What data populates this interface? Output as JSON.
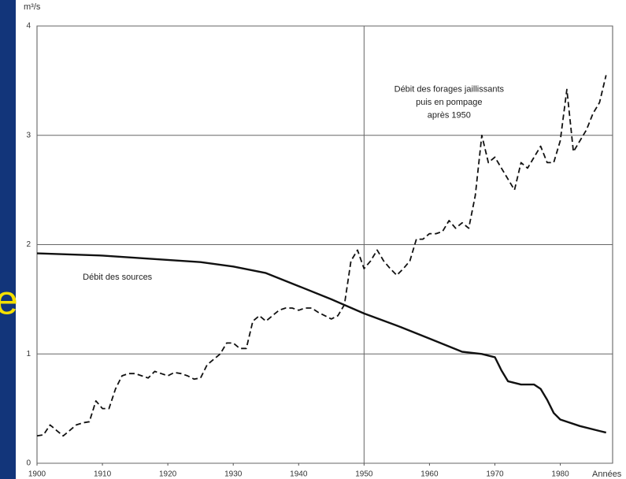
{
  "slide_text": "e",
  "chart_data": {
    "type": "line",
    "y_label": "m³/s",
    "x_label": "Années",
    "xlim": [
      1900,
      1988
    ],
    "ylim": [
      0,
      4
    ],
    "xticks": [
      1900,
      1910,
      1920,
      1930,
      1940,
      1950,
      1960,
      1970,
      1980
    ],
    "yticks": [
      0,
      1,
      2,
      3,
      4
    ],
    "grid": true,
    "xgrid": [
      1950
    ],
    "annotations": [
      {
        "text": "Débit des forages jaillissants",
        "x": 1963,
        "y": 3.42
      },
      {
        "text": "puis en pompage",
        "x": 1963,
        "y": 3.3
      },
      {
        "text": "après 1950",
        "x": 1963,
        "y": 3.18
      },
      {
        "text": "Débit des sources",
        "x": 1907,
        "y": 1.7
      }
    ],
    "series": [
      {
        "name": "Débit des sources",
        "color": "#111111",
        "dash": false,
        "x": [
          1900,
          1910,
          1920,
          1925,
          1930,
          1935,
          1940,
          1945,
          1950,
          1955,
          1960,
          1965,
          1968,
          1970,
          1971,
          1972,
          1974,
          1976,
          1977,
          1978,
          1979,
          1980,
          1983,
          1987
        ],
        "values": [
          1.92,
          1.9,
          1.86,
          1.84,
          1.8,
          1.74,
          1.62,
          1.5,
          1.37,
          1.26,
          1.14,
          1.02,
          1.0,
          0.97,
          0.85,
          0.75,
          0.72,
          0.72,
          0.68,
          0.58,
          0.46,
          0.4,
          0.34,
          0.28
        ]
      },
      {
        "name": "Débit des forages jaillissants puis en pompage après 1950",
        "color": "#111111",
        "dash": true,
        "x": [
          1900,
          1901,
          1902,
          1903,
          1904,
          1905,
          1906,
          1907,
          1908,
          1909,
          1910,
          1911,
          1912,
          1913,
          1914,
          1915,
          1916,
          1917,
          1918,
          1919,
          1920,
          1921,
          1922,
          1923,
          1924,
          1925,
          1926,
          1927,
          1928,
          1929,
          1930,
          1931,
          1932,
          1933,
          1934,
          1935,
          1936,
          1937,
          1938,
          1939,
          1940,
          1941,
          1942,
          1943,
          1944,
          1945,
          1946,
          1947,
          1948,
          1949,
          1950,
          1951,
          1952,
          1953,
          1954,
          1955,
          1956,
          1957,
          1958,
          1959,
          1960,
          1961,
          1962,
          1963,
          1964,
          1965,
          1966,
          1967,
          1968,
          1969,
          1970,
          1971,
          1972,
          1973,
          1974,
          1975,
          1976,
          1977,
          1978,
          1979,
          1980,
          1981,
          1982,
          1983,
          1984,
          1985,
          1986,
          1987
        ],
        "values": [
          0.25,
          0.26,
          0.35,
          0.3,
          0.25,
          0.3,
          0.35,
          0.37,
          0.38,
          0.57,
          0.5,
          0.5,
          0.68,
          0.8,
          0.82,
          0.82,
          0.8,
          0.78,
          0.84,
          0.82,
          0.8,
          0.83,
          0.82,
          0.8,
          0.77,
          0.78,
          0.9,
          0.95,
          1.0,
          1.1,
          1.1,
          1.05,
          1.05,
          1.3,
          1.35,
          1.3,
          1.35,
          1.4,
          1.42,
          1.42,
          1.4,
          1.42,
          1.42,
          1.38,
          1.35,
          1.32,
          1.35,
          1.45,
          1.85,
          1.95,
          1.78,
          1.85,
          1.95,
          1.85,
          1.78,
          1.72,
          1.78,
          1.85,
          2.05,
          2.05,
          2.1,
          2.1,
          2.12,
          2.22,
          2.15,
          2.2,
          2.15,
          2.45,
          3.0,
          2.75,
          2.8,
          2.7,
          2.6,
          2.5,
          2.75,
          2.7,
          2.8,
          2.9,
          2.75,
          2.75,
          2.95,
          3.42,
          2.85,
          2.95,
          3.05,
          3.2,
          3.3,
          3.55
        ]
      }
    ]
  }
}
